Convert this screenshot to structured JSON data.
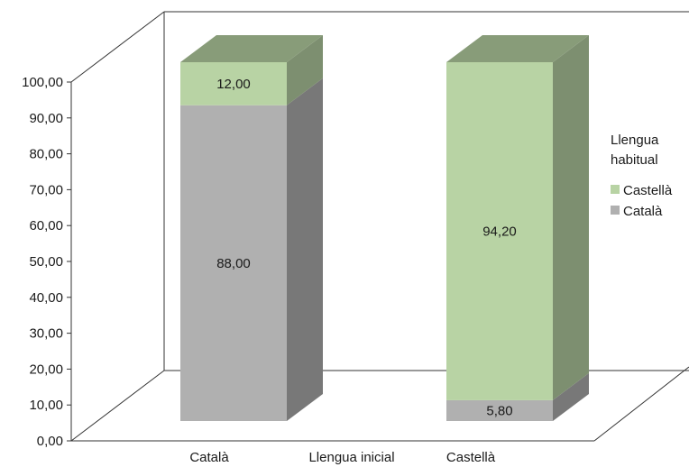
{
  "chart_data": {
    "type": "bar",
    "stacked": true,
    "three_d": true,
    "categories": [
      "Català",
      "Castellà"
    ],
    "xlabel": "Llengua inicial",
    "ylabel": "",
    "ylim": [
      0,
      100
    ],
    "yticks": [
      "0,00",
      "10,00",
      "20,00",
      "30,00",
      "40,00",
      "50,00",
      "60,00",
      "70,00",
      "80,00",
      "90,00",
      "100,00"
    ],
    "series": [
      {
        "name": "Català",
        "values": [
          88.0,
          5.8
        ],
        "labels": [
          "88,00",
          "5,80"
        ],
        "color": "#b0b0b0"
      },
      {
        "name": "Castellà",
        "values": [
          12.0,
          94.2
        ],
        "labels": [
          "12,00",
          "94,20"
        ],
        "color": "#b8d3a4"
      }
    ],
    "legend": {
      "title_lines": [
        "Llengua",
        "habitual"
      ],
      "placement": "right",
      "order": [
        "Castellà",
        "Català"
      ]
    },
    "grid": false
  }
}
